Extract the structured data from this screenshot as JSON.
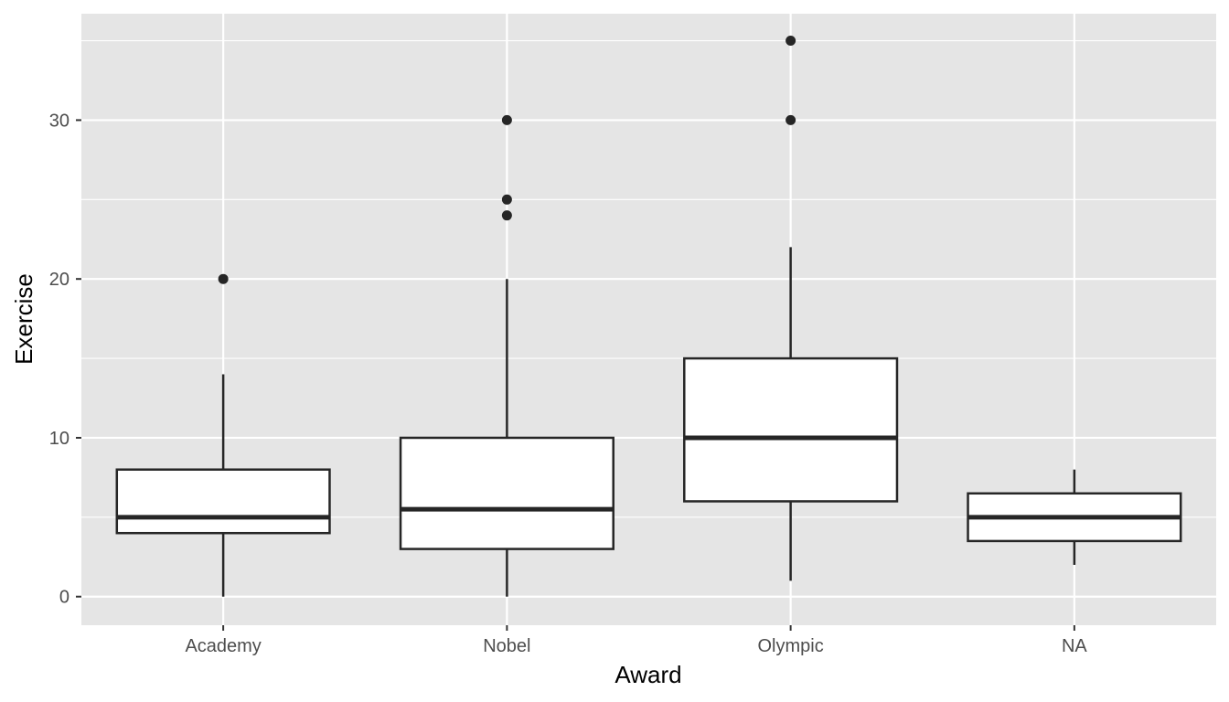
{
  "chart_data": {
    "type": "boxplot",
    "title": "",
    "xlabel": "Award",
    "ylabel": "Exercise",
    "ylim": [
      -1.8,
      36.7
    ],
    "y_ticks": [
      0,
      10,
      20,
      30
    ],
    "y_minor_ticks": [
      5,
      15,
      25,
      35
    ],
    "grid": true,
    "colors": {
      "panel": "#E5E5E5",
      "grid": "#FFFFFF",
      "box_fill": "#FFFFFF",
      "box_stroke": "#262626",
      "tick_text": "#4D4D4D",
      "axis_title": "#000000"
    },
    "categories": [
      "Academy",
      "Nobel",
      "Olympic",
      "NA"
    ],
    "boxes": [
      {
        "category": "Academy",
        "whisker_low": 0,
        "q1": 4,
        "median": 5,
        "q3": 8,
        "whisker_high": 14,
        "outliers": [
          20
        ]
      },
      {
        "category": "Nobel",
        "whisker_low": 0,
        "q1": 3,
        "median": 5.5,
        "q3": 10,
        "whisker_high": 20,
        "outliers": [
          24,
          25,
          30
        ]
      },
      {
        "category": "Olympic",
        "whisker_low": 1,
        "q1": 6,
        "median": 10,
        "q3": 15,
        "whisker_high": 22,
        "outliers": [
          30,
          35
        ]
      },
      {
        "category": "NA",
        "whisker_low": 2,
        "q1": 3.5,
        "median": 5,
        "q3": 6.5,
        "whisker_high": 8,
        "outliers": []
      }
    ]
  }
}
